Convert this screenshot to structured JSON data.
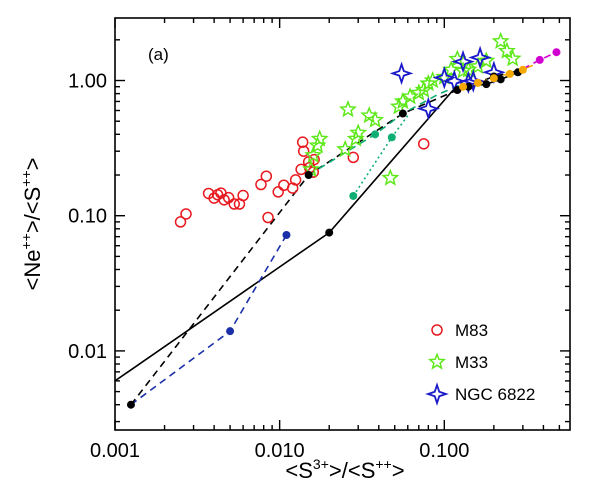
{
  "chart_data": {
    "type": "scatter",
    "panel_label": "(a)",
    "xlabel": {
      "pre": "<S",
      "sup1": "3+",
      "mid": ">/<S",
      "sup2": "++",
      "post": ">"
    },
    "ylabel": {
      "pre": "<Ne",
      "sup1": "++",
      "mid": ">/<S",
      "sup2": "++",
      "post": ">"
    },
    "xscale": "log",
    "yscale": "log",
    "xlim": [
      0.001,
      0.58
    ],
    "ylim": [
      0.0026,
      2.9
    ],
    "xticks": [
      {
        "value": 0.001,
        "label": "0.001"
      },
      {
        "value": 0.01,
        "label": "0.010"
      },
      {
        "value": 0.1,
        "label": "0.100"
      }
    ],
    "yticks": [
      {
        "value": 0.01,
        "label": "0.01"
      },
      {
        "value": 0.1,
        "label": "0.10"
      },
      {
        "value": 1,
        "label": "1.00"
      }
    ],
    "legend_position": "bottom-right",
    "colors": {
      "m83": "#e8191f",
      "m33": "#5ee81a",
      "ngc6822": "#1a1aca",
      "black": "#000000",
      "blue_model": "#1a2fa8",
      "green_model": "#0fae73",
      "orange": "#f5a900",
      "magenta": "#d100d1"
    },
    "series": [
      {
        "name": "M83",
        "marker": "open-circle",
        "color": "#e8191f",
        "points": [
          [
            0.0025,
            0.09
          ],
          [
            0.0027,
            0.103
          ],
          [
            0.0037,
            0.146
          ],
          [
            0.004,
            0.135
          ],
          [
            0.0042,
            0.143
          ],
          [
            0.0044,
            0.147
          ],
          [
            0.0046,
            0.131
          ],
          [
            0.0049,
            0.136
          ],
          [
            0.0053,
            0.122
          ],
          [
            0.0057,
            0.122
          ],
          [
            0.006,
            0.141
          ],
          [
            0.0077,
            0.17
          ],
          [
            0.0083,
            0.196
          ],
          [
            0.0085,
            0.097
          ],
          [
            0.0098,
            0.15
          ],
          [
            0.0106,
            0.168
          ],
          [
            0.012,
            0.16
          ],
          [
            0.0125,
            0.184
          ],
          [
            0.0135,
            0.22
          ],
          [
            0.0138,
            0.35
          ],
          [
            0.014,
            0.3
          ],
          [
            0.015,
            0.25
          ],
          [
            0.0152,
            0.227
          ],
          [
            0.016,
            0.21
          ],
          [
            0.0162,
            0.26
          ],
          [
            0.028,
            0.27
          ],
          [
            0.075,
            0.34
          ]
        ]
      },
      {
        "name": "M33",
        "marker": "open-star",
        "color": "#5ee81a",
        "points": [
          [
            0.0155,
            0.22
          ],
          [
            0.016,
            0.28
          ],
          [
            0.017,
            0.33
          ],
          [
            0.0175,
            0.37
          ],
          [
            0.025,
            0.31
          ],
          [
            0.026,
            0.61
          ],
          [
            0.029,
            0.37
          ],
          [
            0.03,
            0.41
          ],
          [
            0.035,
            0.55
          ],
          [
            0.038,
            0.51
          ],
          [
            0.047,
            0.19
          ],
          [
            0.053,
            0.64
          ],
          [
            0.056,
            0.7
          ],
          [
            0.062,
            0.76
          ],
          [
            0.07,
            0.81
          ],
          [
            0.075,
            0.85
          ],
          [
            0.08,
            0.95
          ],
          [
            0.085,
            1.0
          ],
          [
            0.1,
            1.06
          ],
          [
            0.11,
            1.2
          ],
          [
            0.12,
            1.44
          ],
          [
            0.13,
            1.18
          ],
          [
            0.14,
            1.2
          ],
          [
            0.16,
            1.27
          ],
          [
            0.18,
            1.4
          ],
          [
            0.22,
            1.95
          ],
          [
            0.24,
            1.65
          ],
          [
            0.26,
            1.45
          ]
        ]
      },
      {
        "name": "NGC 6822",
        "marker": "open-four-point-star",
        "color": "#1a1aca",
        "points": [
          [
            0.055,
            1.13
          ],
          [
            0.08,
            0.62
          ],
          [
            0.1,
            1.05
          ],
          [
            0.115,
            0.99
          ],
          [
            0.13,
            1.38
          ],
          [
            0.14,
            0.97
          ],
          [
            0.15,
            0.99
          ],
          [
            0.165,
            1.48
          ],
          [
            0.2,
            1.15
          ]
        ]
      },
      {
        "name": "",
        "line": "solid",
        "color": "#000000",
        "marker": "filled-dot",
        "points": [
          [
            0.001,
            0.006
          ],
          [
            0.02,
            0.075
          ],
          [
            0.115,
            0.87
          ],
          [
            0.14,
            0.9
          ],
          [
            0.18,
            0.94
          ],
          [
            0.22,
            1.02
          ],
          [
            0.28,
            1.15
          ]
        ],
        "marker_points": [
          [
            0.02,
            0.075
          ],
          [
            0.14,
            0.9
          ],
          [
            0.18,
            0.94
          ],
          [
            0.22,
            1.02
          ],
          [
            0.28,
            1.15
          ]
        ]
      },
      {
        "name": "",
        "line": "dashed",
        "color": "#000000",
        "marker": "filled-dot",
        "points": [
          [
            0.00125,
            0.004
          ],
          [
            0.015,
            0.2
          ],
          [
            0.056,
            0.57
          ],
          [
            0.12,
            0.85
          ],
          [
            0.2,
            1.07
          ],
          [
            0.3,
            1.2
          ]
        ],
        "marker_points": [
          [
            0.00125,
            0.004
          ],
          [
            0.015,
            0.2
          ],
          [
            0.056,
            0.57
          ],
          [
            0.12,
            0.85
          ],
          [
            0.2,
            1.07
          ]
        ]
      },
      {
        "name": "",
        "line": "dashed",
        "color": "#1a2fa8",
        "marker": "filled-dot",
        "points": [
          [
            0.00125,
            0.004
          ],
          [
            0.005,
            0.014
          ],
          [
            0.011,
            0.072
          ]
        ],
        "marker_points": [
          [
            0.005,
            0.014
          ],
          [
            0.011,
            0.072
          ]
        ]
      },
      {
        "name": "",
        "line": "dashed",
        "color": "#0fae73",
        "marker": "filled-dot",
        "points": [
          [
            0.015,
            0.2
          ],
          [
            0.038,
            0.4
          ],
          [
            0.056,
            0.57
          ],
          [
            0.09,
            0.78
          ],
          [
            0.13,
            0.95
          ]
        ],
        "marker_points": [
          [
            0.038,
            0.4
          ]
        ]
      },
      {
        "name": "",
        "line": "dotted",
        "color": "#0fae73",
        "marker": "filled-dot",
        "points": [
          [
            0.028,
            0.14
          ],
          [
            0.048,
            0.38
          ],
          [
            0.06,
            0.55
          ]
        ],
        "marker_points": [
          [
            0.028,
            0.14
          ],
          [
            0.048,
            0.38
          ]
        ]
      },
      {
        "name": "",
        "line": "dashed",
        "color": "#f5a900",
        "marker": "filled-dot",
        "points": [
          [
            0.12,
            0.87
          ],
          [
            0.16,
            0.96
          ],
          [
            0.22,
            1.08
          ],
          [
            0.28,
            1.17
          ],
          [
            0.36,
            1.32
          ]
        ],
        "marker_points": [
          [
            0.13,
            0.9
          ],
          [
            0.16,
            0.96
          ],
          [
            0.2,
            1.04
          ],
          [
            0.25,
            1.12
          ],
          [
            0.3,
            1.2
          ]
        ]
      },
      {
        "name": "",
        "line": "dashed",
        "color": "#d100d1",
        "marker": "filled-dot",
        "points": [
          [
            0.3,
            1.22
          ],
          [
            0.38,
            1.42
          ],
          [
            0.48,
            1.62
          ]
        ],
        "marker_points": [
          [
            0.38,
            1.42
          ],
          [
            0.48,
            1.62
          ]
        ]
      }
    ],
    "legend": [
      {
        "label": "M83",
        "marker": "open-circle",
        "color": "#e8191f"
      },
      {
        "label": "M33",
        "marker": "open-star",
        "color": "#5ee81a"
      },
      {
        "label": "NGC 6822",
        "marker": "open-four-point-star",
        "color": "#1a1aca"
      }
    ]
  }
}
